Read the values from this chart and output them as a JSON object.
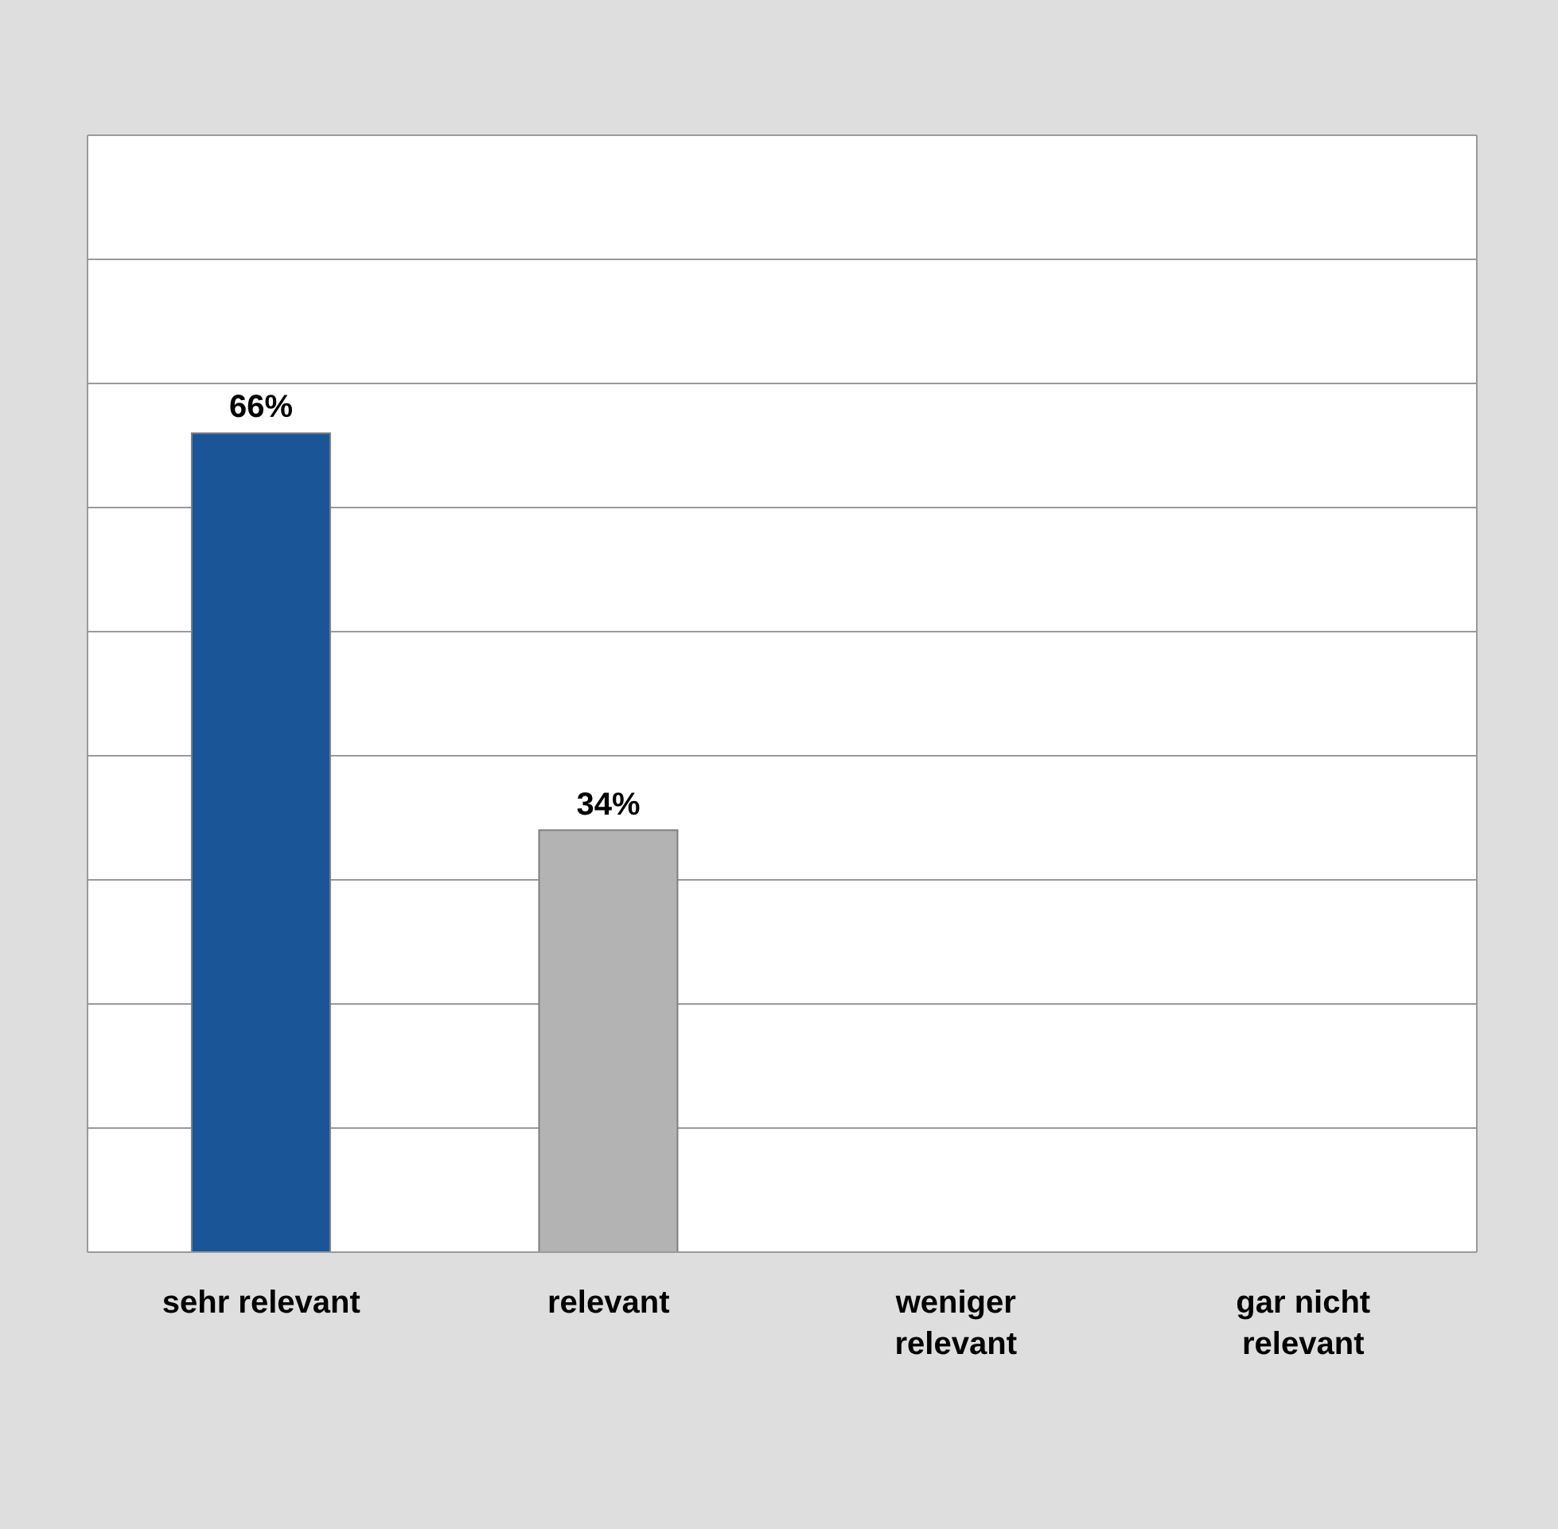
{
  "chart_data": {
    "type": "bar",
    "categories": [
      "sehr relevant",
      "relevant",
      "weniger relevant",
      "gar nicht relevant"
    ],
    "values": [
      66,
      34,
      0,
      0
    ],
    "colors": [
      "#1a5597",
      "#b3b3b3",
      "#b3b3b3",
      "#b3b3b3"
    ],
    "value_labels": [
      "66%",
      "34%",
      null,
      null
    ],
    "ylim": [
      0,
      90
    ],
    "yticks": [
      {
        "value": 0,
        "label": null
      },
      {
        "value": 10,
        "label": null
      },
      {
        "value": 20,
        "label": null
      },
      {
        "value": 30,
        "label": null
      },
      {
        "value": 40,
        "label": null
      },
      {
        "value": 50,
        "label": null
      },
      {
        "value": 60,
        "label": null
      },
      {
        "value": 70,
        "label": null
      },
      {
        "value": 80,
        "label": null
      },
      {
        "value": 90,
        "label": null
      }
    ],
    "grid": "y",
    "legend": false,
    "tick_labels": "x"
  }
}
